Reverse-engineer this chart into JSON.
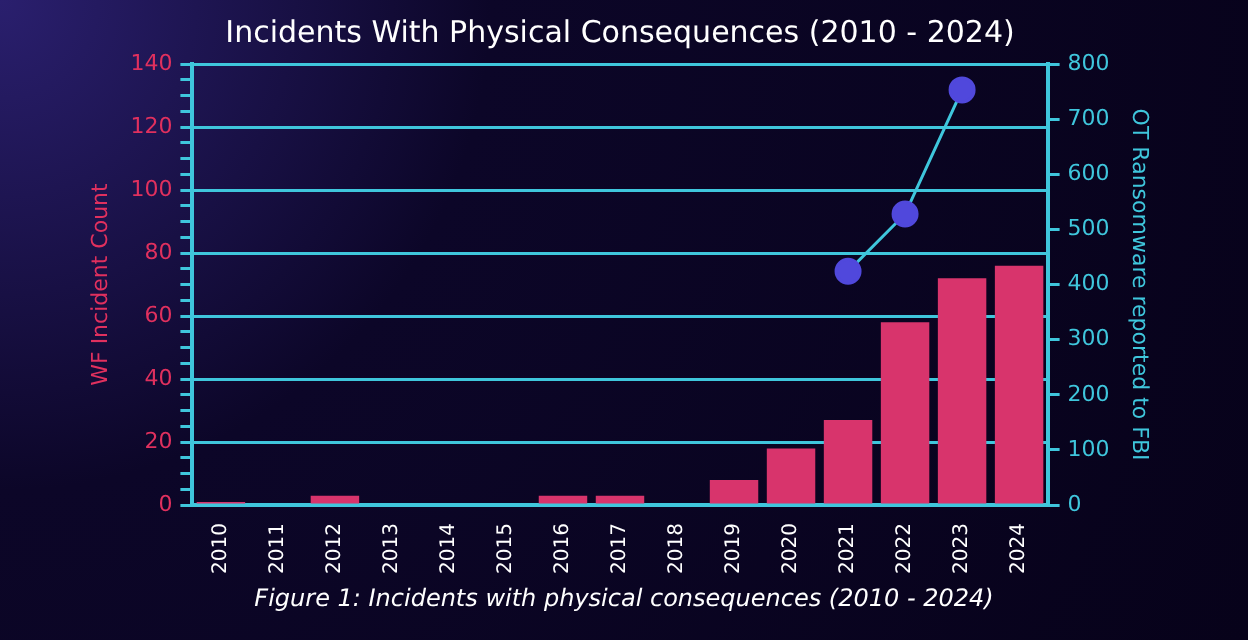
{
  "chart_data": {
    "type": "bar",
    "title": "Incidents With Physical Consequences (2010 - 2024)",
    "ylabel": "WF Incident Count",
    "y2label": "OT Ransomware reported to FBI",
    "annotations": [
      "Figure 1: Incidents with physical consequences (2010 - 2024)"
    ],
    "categories": [
      "2010",
      "2011",
      "2012",
      "2013",
      "2014",
      "2015",
      "2016",
      "2017",
      "2018",
      "2019",
      "2020",
      "2021",
      "2022",
      "2023",
      "2024"
    ],
    "series": [
      {
        "color": "#d8346c",
        "values": [
          1,
          0,
          3,
          0,
          0,
          0,
          3,
          3,
          0,
          8,
          18,
          27,
          58,
          72,
          76
        ]
      },
      {
        "type": "line",
        "axis": "y2",
        "color": "#3fc6dc",
        "marker": "circle",
        "values": [
          null,
          null,
          null,
          null,
          null,
          null,
          null,
          null,
          null,
          null,
          null,
          424,
          528,
          753,
          null
        ]
      }
    ],
    "ylim": [
      0,
      140
    ],
    "yticks": [
      0,
      {
        "value": 5,
        "label": null
      },
      {
        "value": 10,
        "label": null
      },
      {
        "value": 15,
        "label": null
      },
      20,
      {
        "value": 25,
        "label": null
      },
      {
        "value": 30,
        "label": null
      },
      {
        "value": 35,
        "label": null
      },
      40,
      {
        "value": 45,
        "label": null
      },
      {
        "value": 50,
        "label": null
      },
      {
        "value": 55,
        "label": null
      },
      60,
      {
        "value": 65,
        "label": null
      },
      {
        "value": 70,
        "label": null
      },
      {
        "value": 75,
        "label": null
      },
      80,
      {
        "value": 85,
        "label": null
      },
      {
        "value": 90,
        "label": null
      },
      {
        "value": 95,
        "label": null
      },
      100,
      {
        "value": 105,
        "label": null
      },
      {
        "value": 110,
        "label": null
      },
      {
        "value": 115,
        "label": null
      },
      120,
      {
        "value": 125,
        "label": null
      },
      {
        "value": 130,
        "label": null
      },
      {
        "value": 135,
        "label": null
      },
      140
    ],
    "y2lim": [
      0,
      800
    ],
    "y2ticks": [
      0,
      100,
      200,
      300,
      400,
      500,
      600,
      700,
      800
    ],
    "grid": "y",
    "legend": false
  }
}
